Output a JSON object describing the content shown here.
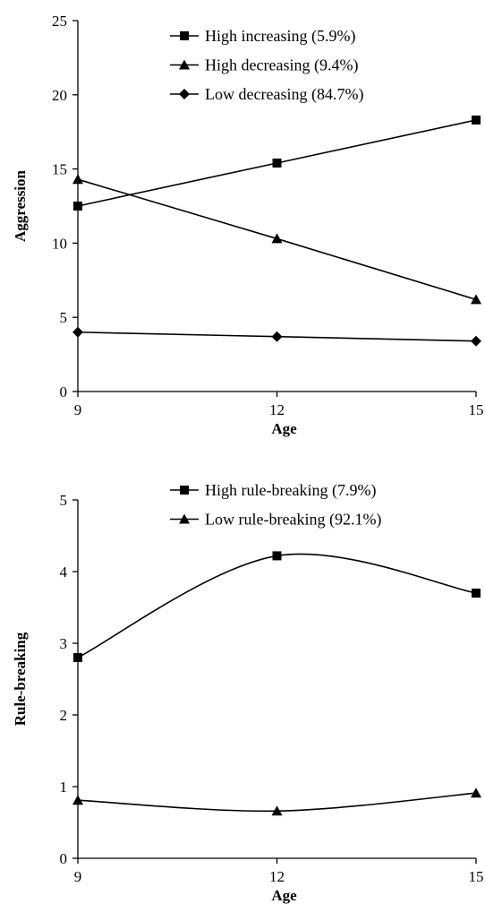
{
  "chart_data": [
    {
      "type": "line",
      "title": "",
      "xlabel": "Age",
      "ylabel": "Aggression",
      "x": [
        9,
        12,
        15
      ],
      "xlim": [
        9,
        15
      ],
      "ylim": [
        0,
        25
      ],
      "xticks": [
        9,
        12,
        15
      ],
      "yticks": [
        0,
        5,
        10,
        15,
        20,
        25
      ],
      "grid": false,
      "legend_position": "top-center",
      "series": [
        {
          "name": "High increasing (5.9%)",
          "marker": "square",
          "values": [
            12.5,
            15.4,
            18.3
          ]
        },
        {
          "name": "High decreasing (9.4%)",
          "marker": "triangle",
          "values": [
            14.3,
            10.3,
            6.2
          ]
        },
        {
          "name": "Low decreasing (84.7%)",
          "marker": "diamond",
          "values": [
            4.0,
            3.7,
            3.4
          ]
        }
      ]
    },
    {
      "type": "line",
      "title": "",
      "xlabel": "Age",
      "ylabel": "Rule-breaking",
      "x": [
        9,
        12,
        15
      ],
      "xlim": [
        9,
        15
      ],
      "ylim": [
        0,
        5
      ],
      "xticks": [
        9,
        12,
        15
      ],
      "yticks": [
        0,
        1,
        2,
        3,
        4,
        5
      ],
      "grid": false,
      "smooth": true,
      "legend_position": "top-center",
      "series": [
        {
          "name": "High rule-breaking (7.9%)",
          "marker": "square",
          "values": [
            2.8,
            4.22,
            3.7
          ]
        },
        {
          "name": "Low rule-breaking (92.1%)",
          "marker": "triangle",
          "values": [
            0.81,
            0.66,
            0.91
          ]
        }
      ]
    }
  ]
}
